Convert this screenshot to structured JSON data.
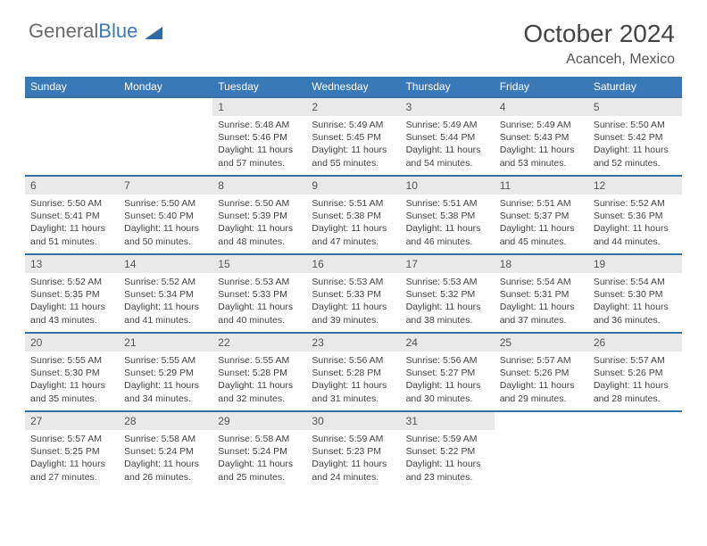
{
  "logo": {
    "part1": "General",
    "part2": "Blue"
  },
  "header": {
    "title": "October 2024",
    "location": "Acanceh, Mexico"
  },
  "colors": {
    "header_bg": "#3a79b7",
    "header_text": "#ffffff",
    "row_border": "#3a6fa3",
    "daynum_bg": "#e9e9e9",
    "text": "#444444"
  },
  "dayNames": [
    "Sunday",
    "Monday",
    "Tuesday",
    "Wednesday",
    "Thursday",
    "Friday",
    "Saturday"
  ],
  "startDayIndex": 2,
  "daysInMonth": 31,
  "days": {
    "1": {
      "sunrise": "5:48 AM",
      "sunset": "5:46 PM",
      "daylight": "11 hours and 57 minutes."
    },
    "2": {
      "sunrise": "5:49 AM",
      "sunset": "5:45 PM",
      "daylight": "11 hours and 55 minutes."
    },
    "3": {
      "sunrise": "5:49 AM",
      "sunset": "5:44 PM",
      "daylight": "11 hours and 54 minutes."
    },
    "4": {
      "sunrise": "5:49 AM",
      "sunset": "5:43 PM",
      "daylight": "11 hours and 53 minutes."
    },
    "5": {
      "sunrise": "5:50 AM",
      "sunset": "5:42 PM",
      "daylight": "11 hours and 52 minutes."
    },
    "6": {
      "sunrise": "5:50 AM",
      "sunset": "5:41 PM",
      "daylight": "11 hours and 51 minutes."
    },
    "7": {
      "sunrise": "5:50 AM",
      "sunset": "5:40 PM",
      "daylight": "11 hours and 50 minutes."
    },
    "8": {
      "sunrise": "5:50 AM",
      "sunset": "5:39 PM",
      "daylight": "11 hours and 48 minutes."
    },
    "9": {
      "sunrise": "5:51 AM",
      "sunset": "5:38 PM",
      "daylight": "11 hours and 47 minutes."
    },
    "10": {
      "sunrise": "5:51 AM",
      "sunset": "5:38 PM",
      "daylight": "11 hours and 46 minutes."
    },
    "11": {
      "sunrise": "5:51 AM",
      "sunset": "5:37 PM",
      "daylight": "11 hours and 45 minutes."
    },
    "12": {
      "sunrise": "5:52 AM",
      "sunset": "5:36 PM",
      "daylight": "11 hours and 44 minutes."
    },
    "13": {
      "sunrise": "5:52 AM",
      "sunset": "5:35 PM",
      "daylight": "11 hours and 43 minutes."
    },
    "14": {
      "sunrise": "5:52 AM",
      "sunset": "5:34 PM",
      "daylight": "11 hours and 41 minutes."
    },
    "15": {
      "sunrise": "5:53 AM",
      "sunset": "5:33 PM",
      "daylight": "11 hours and 40 minutes."
    },
    "16": {
      "sunrise": "5:53 AM",
      "sunset": "5:33 PM",
      "daylight": "11 hours and 39 minutes."
    },
    "17": {
      "sunrise": "5:53 AM",
      "sunset": "5:32 PM",
      "daylight": "11 hours and 38 minutes."
    },
    "18": {
      "sunrise": "5:54 AM",
      "sunset": "5:31 PM",
      "daylight": "11 hours and 37 minutes."
    },
    "19": {
      "sunrise": "5:54 AM",
      "sunset": "5:30 PM",
      "daylight": "11 hours and 36 minutes."
    },
    "20": {
      "sunrise": "5:55 AM",
      "sunset": "5:30 PM",
      "daylight": "11 hours and 35 minutes."
    },
    "21": {
      "sunrise": "5:55 AM",
      "sunset": "5:29 PM",
      "daylight": "11 hours and 34 minutes."
    },
    "22": {
      "sunrise": "5:55 AM",
      "sunset": "5:28 PM",
      "daylight": "11 hours and 32 minutes."
    },
    "23": {
      "sunrise": "5:56 AM",
      "sunset": "5:28 PM",
      "daylight": "11 hours and 31 minutes."
    },
    "24": {
      "sunrise": "5:56 AM",
      "sunset": "5:27 PM",
      "daylight": "11 hours and 30 minutes."
    },
    "25": {
      "sunrise": "5:57 AM",
      "sunset": "5:26 PM",
      "daylight": "11 hours and 29 minutes."
    },
    "26": {
      "sunrise": "5:57 AM",
      "sunset": "5:26 PM",
      "daylight": "11 hours and 28 minutes."
    },
    "27": {
      "sunrise": "5:57 AM",
      "sunset": "5:25 PM",
      "daylight": "11 hours and 27 minutes."
    },
    "28": {
      "sunrise": "5:58 AM",
      "sunset": "5:24 PM",
      "daylight": "11 hours and 26 minutes."
    },
    "29": {
      "sunrise": "5:58 AM",
      "sunset": "5:24 PM",
      "daylight": "11 hours and 25 minutes."
    },
    "30": {
      "sunrise": "5:59 AM",
      "sunset": "5:23 PM",
      "daylight": "11 hours and 24 minutes."
    },
    "31": {
      "sunrise": "5:59 AM",
      "sunset": "5:22 PM",
      "daylight": "11 hours and 23 minutes."
    }
  },
  "labels": {
    "sunrise": "Sunrise: ",
    "sunset": "Sunset: ",
    "daylight": "Daylight: "
  }
}
